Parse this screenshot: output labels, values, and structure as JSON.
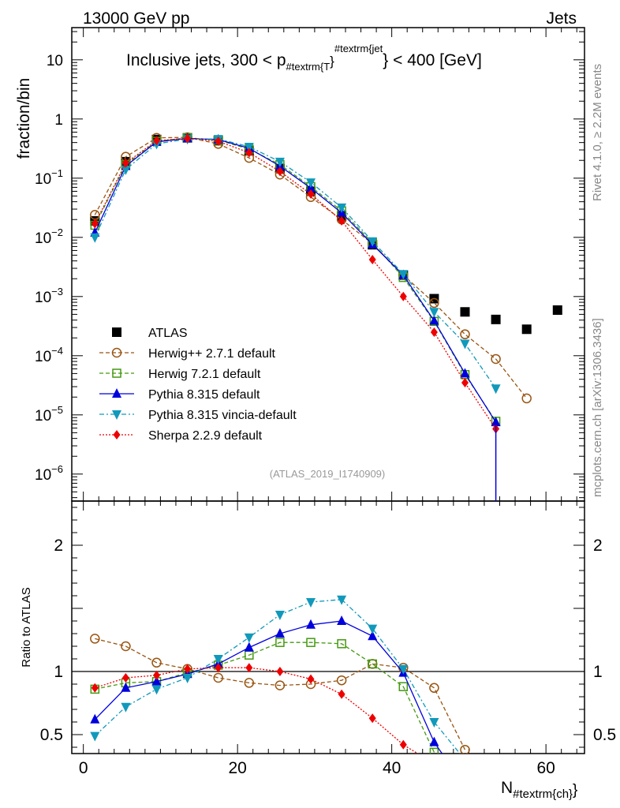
{
  "header": {
    "energy_label": "13000 GeV pp",
    "category_label": "Jets",
    "plot_title_main": "Inclusive jets, 300 < p",
    "plot_title_sub1": "#textrm{T",
    "plot_title_sup": "#textrm{jet",
    "plot_title_end": "} < 400 [GeV]",
    "analysis_id": "(ATLAS_2019_I1740909)"
  },
  "side_labels": {
    "rivet": "Rivet 4.1.0, ≥ 2.2M events",
    "source": "mcplots.cern.ch [arXiv:1306.3436]"
  },
  "axes": {
    "main_ylabel": "fraction/bin",
    "ratio_ylabel": "Ratio to ATLAS",
    "xlabel_main": "N",
    "xlabel_sub": "#textrm{ch}",
    "main_ticks": [
      {
        "value": 10,
        "label": "10"
      },
      {
        "value": 1,
        "label": "1"
      },
      {
        "value": 0.1,
        "base": "10",
        "exp": "−1"
      },
      {
        "value": 0.01,
        "base": "10",
        "exp": "−2"
      },
      {
        "value": 0.001,
        "base": "10",
        "exp": "−3"
      },
      {
        "value": 0.0001,
        "base": "10",
        "exp": "−4"
      },
      {
        "value": 1e-05,
        "base": "10",
        "exp": "−5"
      },
      {
        "value": 1e-06,
        "base": "10",
        "exp": "−6"
      }
    ],
    "ratio_ticks": [
      {
        "value": 2,
        "label": "2"
      },
      {
        "value": 1,
        "label": "1"
      },
      {
        "value": 0.5,
        "label": "0.5"
      }
    ],
    "x_ticks": [
      {
        "value": 0,
        "label": "0"
      },
      {
        "value": 20,
        "label": "20"
      },
      {
        "value": 40,
        "label": "40"
      },
      {
        "value": 60,
        "label": "60"
      }
    ]
  },
  "chart_data": {
    "type": "scatter",
    "x_range": [
      -1.5,
      65
    ],
    "y_log_range": [
      3.5e-07,
      35
    ],
    "ratio_range": [
      0.35,
      2.35
    ],
    "series": [
      {
        "name": "ATLAS",
        "color": "#000000",
        "marker": "square",
        "dash": "none",
        "x": [
          1.5,
          5.5,
          9.5,
          13.5,
          17.5,
          21.5,
          25.5,
          29.5,
          33.5,
          37.5,
          41.5,
          45.5,
          49.5,
          53.5,
          57.5,
          61.5
        ],
        "y": [
          0.019,
          0.19,
          0.45,
          0.48,
          0.43,
          0.29,
          0.145,
          0.06,
          0.023,
          0.0075,
          0.0023,
          0.00092,
          0.00055,
          0.00041,
          0.00028,
          0.00059
        ],
        "ratio": []
      },
      {
        "name": "Herwig++ 2.7.1 default",
        "color": "#995511",
        "marker": "circle",
        "dash": "5,3",
        "x": [
          1.5,
          5.5,
          9.5,
          13.5,
          17.5,
          21.5,
          25.5,
          29.5,
          33.5,
          37.5,
          41.5,
          45.5,
          49.5,
          53.5,
          57.5
        ],
        "y": [
          0.024,
          0.23,
          0.48,
          0.49,
          0.38,
          0.22,
          0.115,
          0.048,
          0.02,
          0.0078,
          0.0023,
          0.00078,
          0.00023,
          8.8e-05,
          1.9e-05
        ],
        "ratio": [
          1.26,
          1.2,
          1.07,
          1.02,
          0.95,
          0.91,
          0.89,
          0.9,
          0.93,
          1.06,
          1.03,
          0.87,
          0.38
        ]
      },
      {
        "name": "Herwig 7.2.1 default",
        "color": "#449911",
        "marker": "opensquare",
        "dash": "5,3",
        "x": [
          1.5,
          5.5,
          9.5,
          13.5,
          17.5,
          21.5,
          25.5,
          29.5,
          33.5,
          37.5,
          41.5,
          45.5,
          49.5,
          53.5
        ],
        "y": [
          0.016,
          0.17,
          0.42,
          0.48,
          0.44,
          0.31,
          0.17,
          0.072,
          0.028,
          0.0081,
          0.0021,
          0.00038,
          4.8e-05,
          7.8e-06
        ],
        "ratio": [
          0.86,
          0.91,
          0.92,
          0.99,
          1.05,
          1.13,
          1.23,
          1.23,
          1.22,
          1.06,
          0.88,
          0.36,
          0.16
        ]
      },
      {
        "name": "Pythia 8.315 default",
        "color": "#0000dd",
        "marker": "triangle",
        "dash": "none",
        "x": [
          1.5,
          5.5,
          9.5,
          13.5,
          17.5,
          21.5,
          25.5,
          29.5,
          33.5,
          37.5,
          41.5,
          45.5,
          49.5,
          53.5
        ],
        "y": [
          0.012,
          0.16,
          0.41,
          0.47,
          0.45,
          0.32,
          0.16,
          0.068,
          0.026,
          0.0076,
          0.0023,
          0.00039,
          5e-05,
          7.5e-06
        ],
        "ratio": [
          0.62,
          0.87,
          0.92,
          0.98,
          1.06,
          1.19,
          1.3,
          1.37,
          1.4,
          1.28,
          0.99,
          0.44,
          0.09
        ]
      },
      {
        "name": "Pythia 8.315 vincia-default",
        "color": "#1199bb",
        "marker": "invtriangle",
        "dash": "6,3,2,3",
        "x": [
          1.5,
          5.5,
          9.5,
          13.5,
          17.5,
          21.5,
          25.5,
          29.5,
          33.5,
          37.5,
          41.5,
          45.5,
          49.5,
          53.5
        ],
        "y": [
          0.01,
          0.14,
          0.38,
          0.46,
          0.46,
          0.34,
          0.19,
          0.085,
          0.032,
          0.0086,
          0.0024,
          0.00055,
          0.00016,
          2.8e-05
        ],
        "ratio": [
          0.49,
          0.72,
          0.86,
          0.95,
          1.1,
          1.27,
          1.45,
          1.55,
          1.57,
          1.34,
          1.02,
          0.6,
          0.3
        ]
      },
      {
        "name": "Sherpa 2.2.9 default",
        "color": "#ee0000",
        "marker": "diamond",
        "dash": "2,2",
        "x": [
          1.5,
          5.5,
          9.5,
          13.5,
          17.5,
          21.5,
          25.5,
          29.5,
          33.5,
          37.5,
          41.5,
          45.5,
          49.5,
          53.5
        ],
        "y": [
          0.017,
          0.18,
          0.43,
          0.47,
          0.42,
          0.27,
          0.13,
          0.054,
          0.019,
          0.0042,
          0.001,
          0.00025,
          3.5e-05,
          5.8e-06
        ],
        "ratio": [
          0.87,
          0.95,
          0.97,
          1.02,
          1.03,
          1.03,
          1.0,
          0.94,
          0.82,
          0.63,
          0.42,
          0.27,
          0.07
        ]
      }
    ]
  }
}
